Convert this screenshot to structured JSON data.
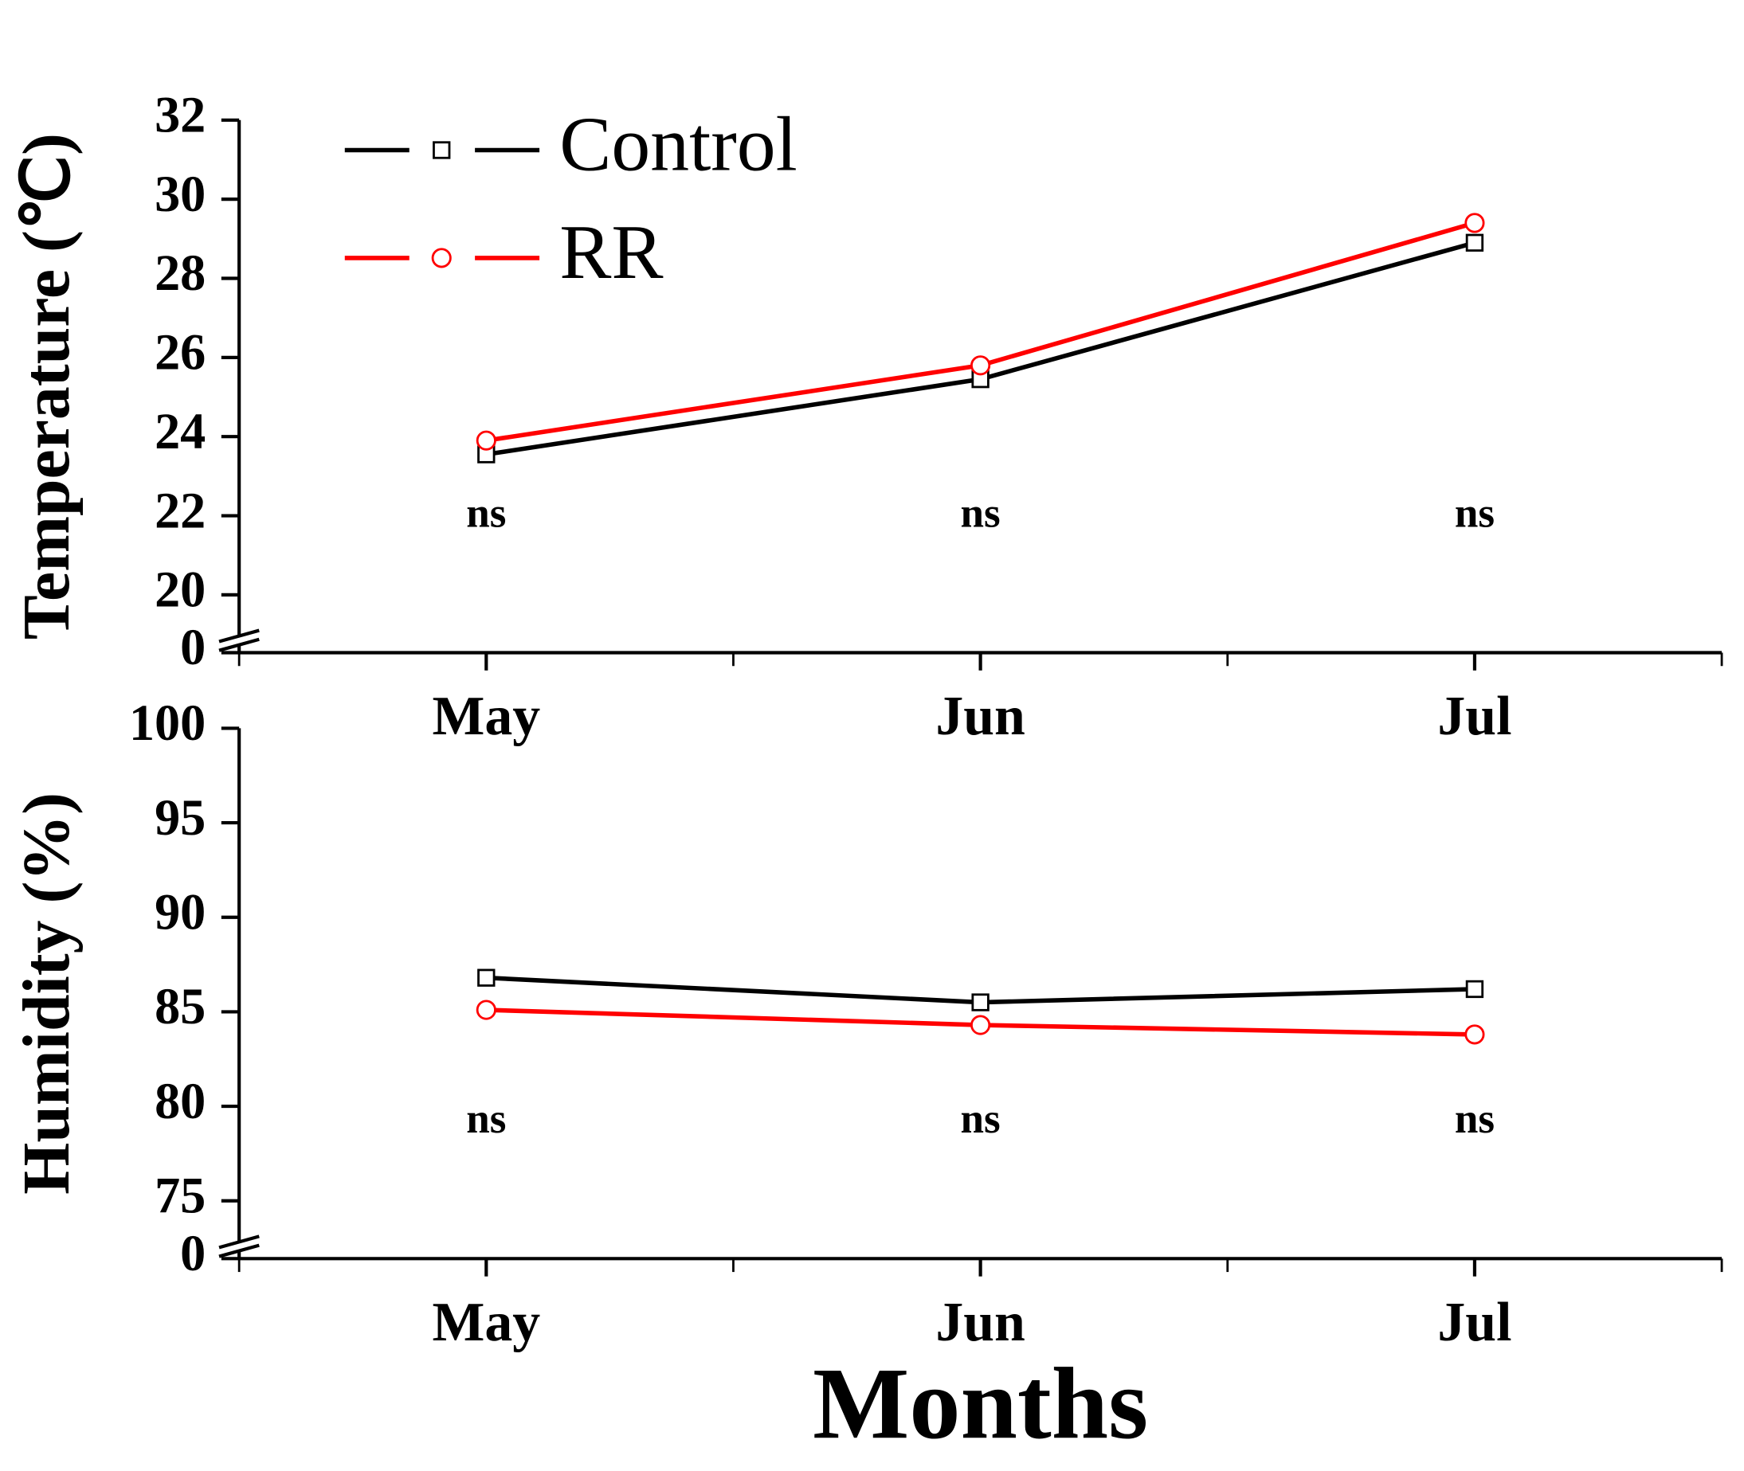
{
  "chart_data": [
    {
      "type": "line",
      "ylabel": "Temperature (℃)",
      "categories": [
        "May",
        "Jun",
        "Jul"
      ],
      "series": [
        {
          "name": "Control",
          "color": "#000000",
          "marker": "square",
          "values": [
            23.55,
            25.45,
            28.9
          ]
        },
        {
          "name": "RR",
          "color": "#ff0000",
          "marker": "circle",
          "values": [
            23.9,
            25.8,
            29.4
          ]
        }
      ],
      "annotations": [
        "ns",
        "ns",
        "ns"
      ],
      "ylim": [
        0,
        32
      ],
      "axis_break": [
        0,
        20
      ],
      "yticks": [
        0,
        20,
        22,
        24,
        26,
        28,
        30,
        32
      ],
      "legend": "upper left"
    },
    {
      "type": "line",
      "ylabel": "Humidity (%)",
      "xlabel": "Months",
      "categories": [
        "May",
        "Jun",
        "Jul"
      ],
      "series": [
        {
          "color": "#000000",
          "marker": "square",
          "values": [
            86.8,
            85.5,
            86.2
          ]
        },
        {
          "color": "#ff0000",
          "marker": "circle",
          "values": [
            85.1,
            84.3,
            83.8
          ]
        }
      ],
      "annotations": [
        "ns",
        "ns",
        "ns"
      ],
      "ylim": [
        0,
        100
      ],
      "axis_break": [
        0,
        75
      ],
      "yticks": [
        0,
        75,
        80,
        85,
        90,
        95,
        100
      ]
    }
  ]
}
